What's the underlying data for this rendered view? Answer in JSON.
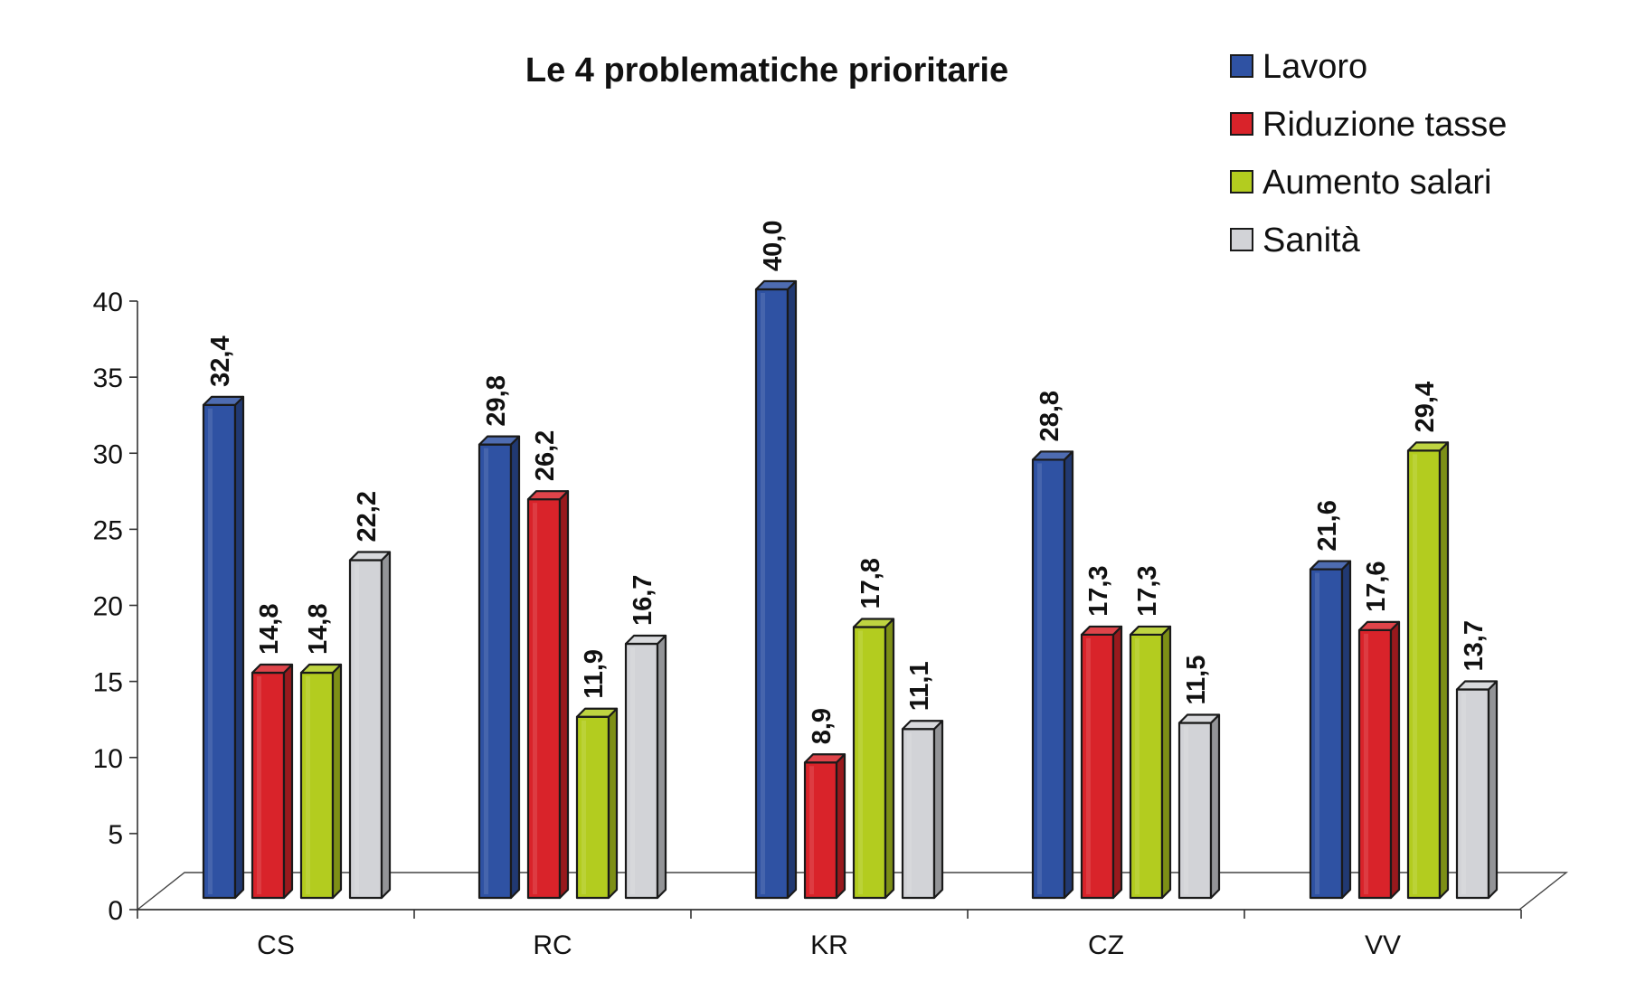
{
  "chart_data": {
    "type": "bar",
    "title": "Le 4 problematiche prioritarie",
    "categories": [
      "CS",
      "RC",
      "KR",
      "CZ",
      "VV"
    ],
    "series": [
      {
        "name": "Lavoro",
        "color": "#2f52a3",
        "values": [
          32.4,
          29.8,
          40.0,
          28.8,
          21.6
        ],
        "labels": [
          "32,4",
          "29,8",
          "40,0",
          "28,8",
          "21,6"
        ]
      },
      {
        "name": "Riduzione tasse",
        "color": "#d9232a",
        "values": [
          14.8,
          26.2,
          8.9,
          17.3,
          17.6
        ],
        "labels": [
          "14,8",
          "26,2",
          "8,9",
          "17,3",
          "17,6"
        ]
      },
      {
        "name": "Aumento salari",
        "color": "#b3cc1f",
        "values": [
          14.8,
          11.9,
          17.8,
          17.3,
          29.4
        ],
        "labels": [
          "14,8",
          "11,9",
          "17,8",
          "17,3",
          "29,4"
        ]
      },
      {
        "name": "Sanità",
        "color": "#d2d3d7",
        "values": [
          22.2,
          16.7,
          11.1,
          11.5,
          13.7
        ],
        "labels": [
          "22,2",
          "16,7",
          "11,1",
          "11,5",
          "13,7"
        ]
      }
    ],
    "y_ticks": [
      "0",
      "5",
      "10",
      "15",
      "20",
      "25",
      "30",
      "35",
      "40"
    ],
    "ylim": [
      0,
      40
    ],
    "legend_position": "top-right",
    "grid": false
  }
}
